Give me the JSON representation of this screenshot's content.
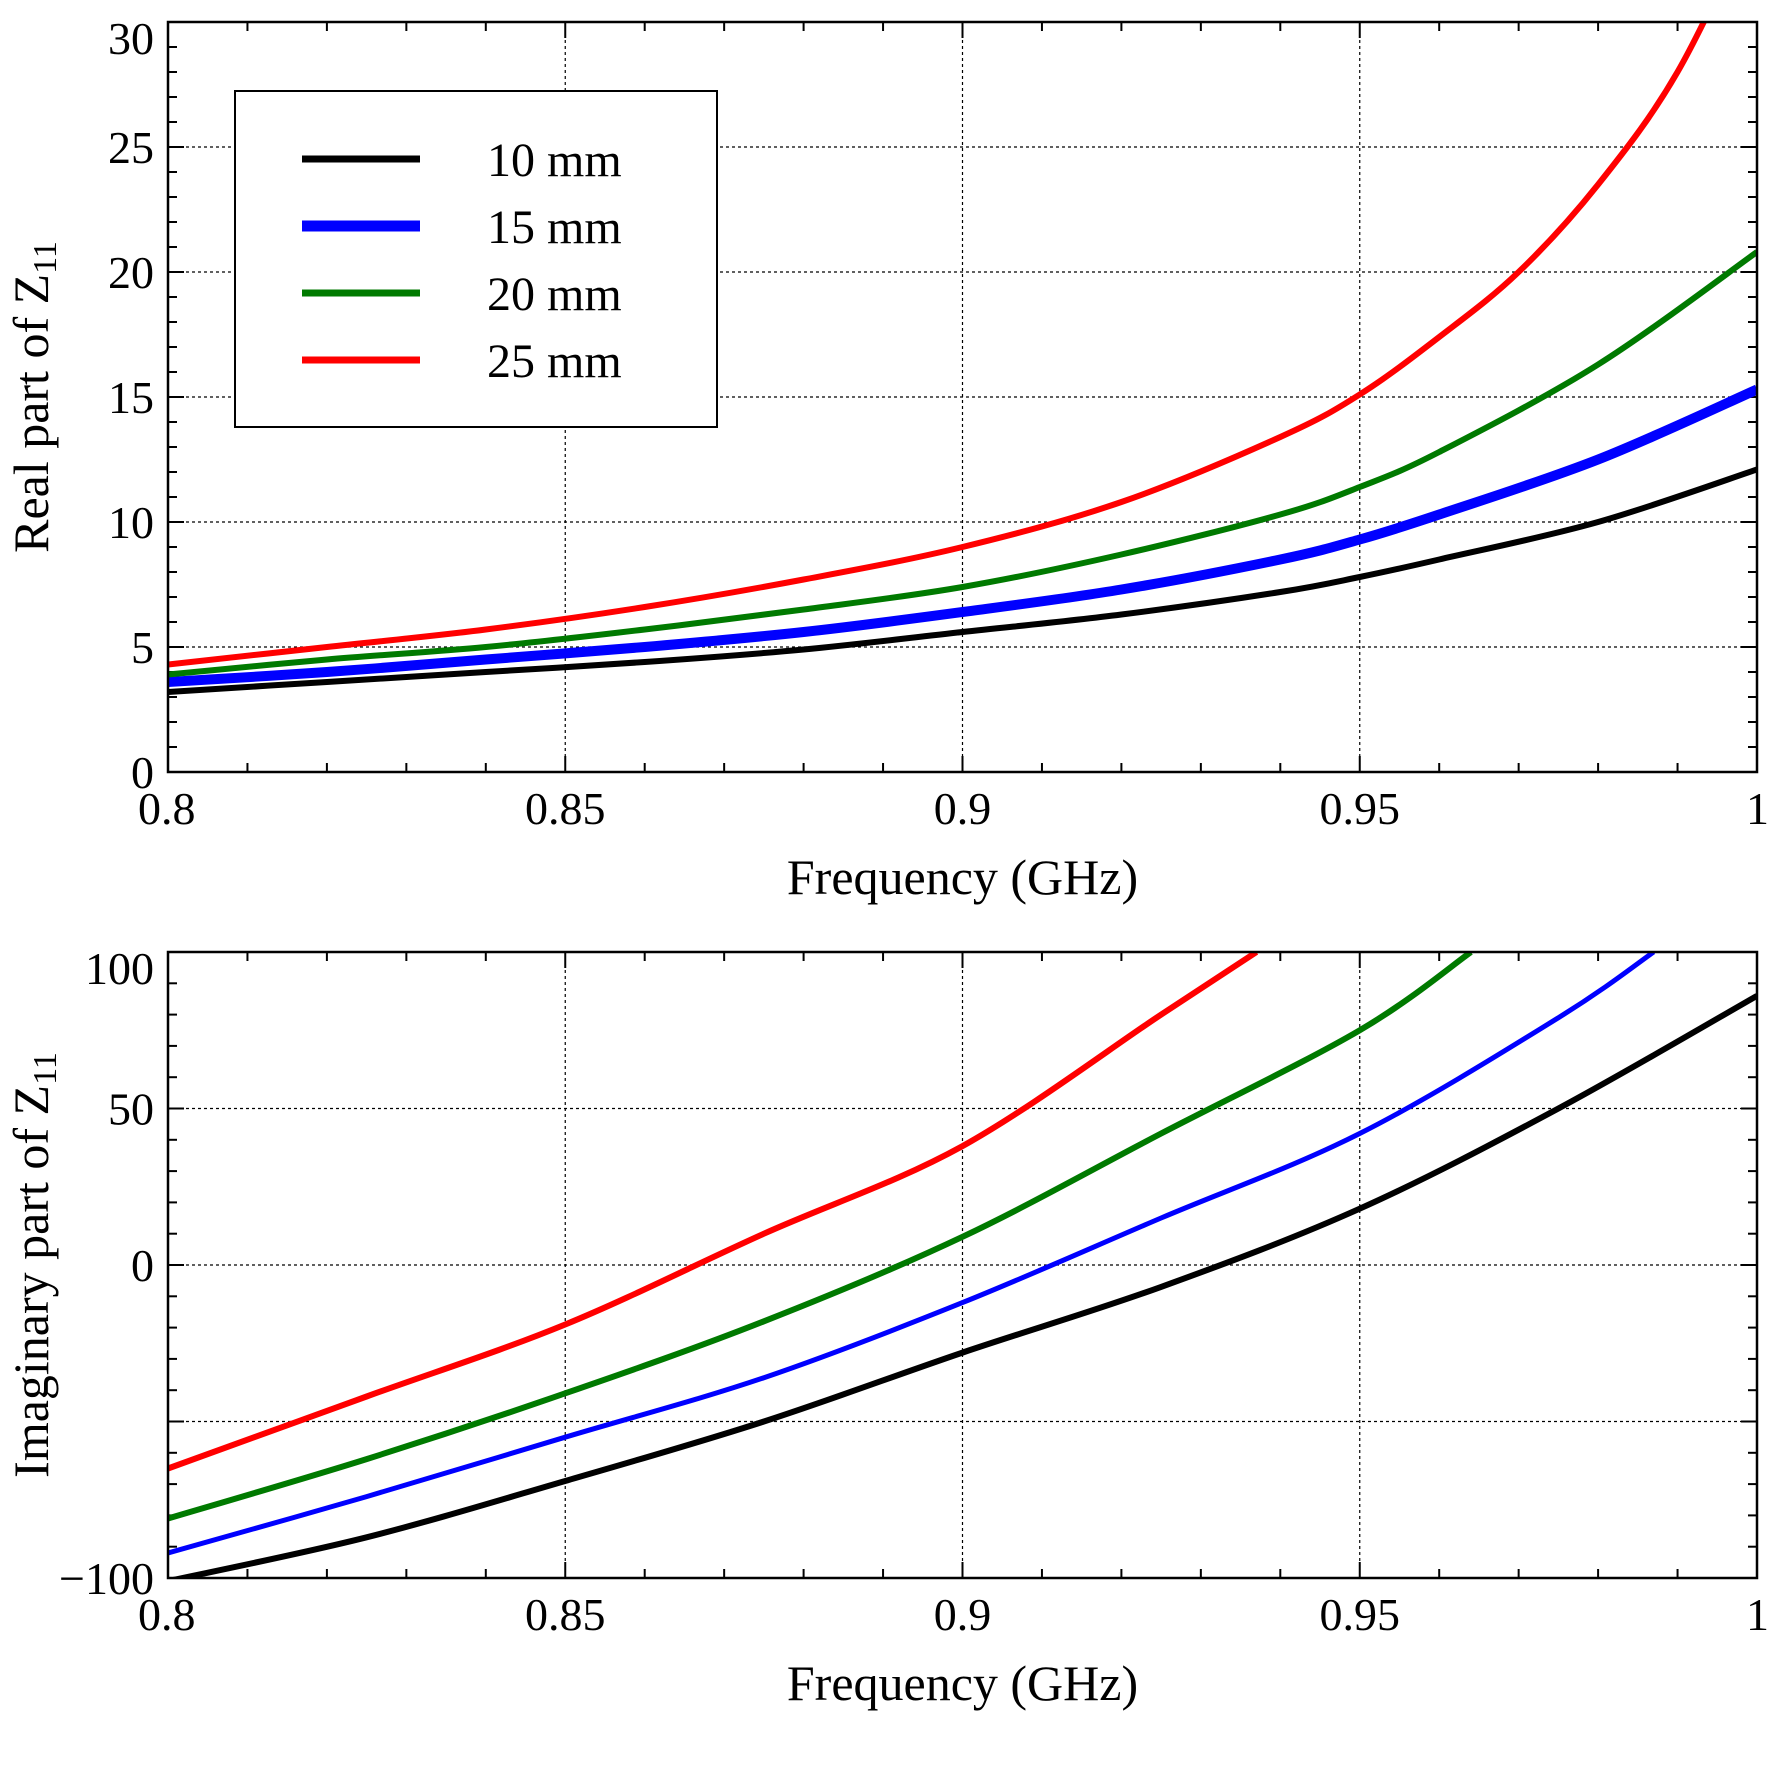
{
  "chart_data": [
    {
      "type": "line",
      "xlabel": "Frequency (GHz)",
      "ylabel_main": "Real part of Z",
      "ylabel_sub": "11",
      "xlim": [
        0.8,
        1.0
      ],
      "ylim": [
        0,
        30
      ],
      "x_ticks": [
        0.8,
        0.85,
        0.9,
        0.95,
        1.0
      ],
      "x_tick_labels": [
        "0.8",
        "0.85",
        "0.9",
        "0.95",
        "1"
      ],
      "x_minor_step": 0.01,
      "y_ticks": [
        0,
        5,
        10,
        15,
        20,
        25,
        30
      ],
      "y_tick_labels": [
        "0",
        "5",
        "10",
        "15",
        "20",
        "25",
        "30"
      ],
      "y_minor_step": 1,
      "grid": true,
      "legend": {
        "placement": "top-left",
        "entries": [
          "10 mm",
          "15 mm",
          "20 mm",
          "25 mm"
        ]
      },
      "series": [
        {
          "name": "10 mm",
          "color": "#000000",
          "width": 6,
          "x": [
            0.8,
            0.82,
            0.84,
            0.86,
            0.88,
            0.9,
            0.92,
            0.94,
            0.95,
            0.96,
            0.98,
            1.0
          ],
          "y": [
            3.2,
            3.6,
            4.0,
            4.4,
            4.9,
            5.6,
            6.3,
            7.2,
            7.8,
            8.5,
            10.0,
            12.1
          ]
        },
        {
          "name": "15 mm",
          "color": "#0000ff",
          "width": 10,
          "x": [
            0.8,
            0.82,
            0.84,
            0.86,
            0.88,
            0.9,
            0.92,
            0.94,
            0.95,
            0.96,
            0.98,
            1.0
          ],
          "y": [
            3.6,
            4.0,
            4.5,
            5.0,
            5.6,
            6.4,
            7.3,
            8.5,
            9.3,
            10.3,
            12.5,
            15.3
          ]
        },
        {
          "name": "20 mm",
          "color": "#007a00",
          "width": 6,
          "x": [
            0.8,
            0.82,
            0.84,
            0.86,
            0.88,
            0.9,
            0.92,
            0.94,
            0.95,
            0.96,
            0.98,
            1.0
          ],
          "y": [
            3.9,
            4.5,
            5.0,
            5.7,
            6.5,
            7.4,
            8.7,
            10.3,
            11.4,
            12.8,
            16.3,
            20.8
          ]
        },
        {
          "name": "25 mm",
          "color": "#ff0000",
          "width": 6,
          "x": [
            0.8,
            0.82,
            0.84,
            0.86,
            0.88,
            0.9,
            0.92,
            0.94,
            0.95,
            0.96,
            0.97,
            0.98,
            0.99,
            1.0
          ],
          "y": [
            4.3,
            5.0,
            5.7,
            6.6,
            7.7,
            9.0,
            10.8,
            13.4,
            15.1,
            17.4,
            20.0,
            23.5,
            28.0,
            34.5
          ]
        }
      ]
    },
    {
      "type": "line",
      "xlabel": "Frequency (GHz)",
      "ylabel_main": "Imaginary part of Z",
      "ylabel_sub": "11",
      "xlim": [
        0.8,
        1.0
      ],
      "ylim": [
        -100,
        100
      ],
      "x_ticks": [
        0.8,
        0.85,
        0.9,
        0.95,
        1.0
      ],
      "x_tick_labels": [
        "0.8",
        "0.85",
        "0.9",
        "0.95",
        "1"
      ],
      "x_minor_step": 0.01,
      "y_ticks": [
        -100,
        -50,
        0,
        50,
        100
      ],
      "y_tick_labels": [
        "−100",
        "",
        "0",
        "50",
        "100"
      ],
      "y_minor_step": 10,
      "grid": true,
      "series": [
        {
          "name": "10 mm",
          "color": "#000000",
          "width": 6,
          "x": [
            0.8,
            0.825,
            0.85,
            0.875,
            0.9,
            0.925,
            0.95,
            0.975,
            1.0
          ],
          "y": [
            -101,
            -87,
            -69,
            -50,
            -28,
            -7,
            18,
            50,
            86
          ]
        },
        {
          "name": "15 mm",
          "color": "#0000ff",
          "width": 5,
          "x": [
            0.8,
            0.825,
            0.85,
            0.875,
            0.9,
            0.925,
            0.95,
            0.975,
            0.987
          ],
          "y": [
            -92,
            -74,
            -55,
            -36,
            -12,
            15,
            42,
            79,
            100
          ]
        },
        {
          "name": "20 mm",
          "color": "#007a00",
          "width": 6,
          "x": [
            0.8,
            0.825,
            0.85,
            0.875,
            0.9,
            0.925,
            0.95,
            0.964
          ],
          "y": [
            -81,
            -62,
            -41,
            -18,
            9,
            42,
            75,
            100
          ]
        },
        {
          "name": "25 mm",
          "color": "#ff0000",
          "width": 6,
          "x": [
            0.8,
            0.825,
            0.85,
            0.875,
            0.9,
            0.925,
            0.937
          ],
          "y": [
            -65,
            -42,
            -19,
            10,
            38,
            80,
            100
          ]
        }
      ]
    }
  ]
}
